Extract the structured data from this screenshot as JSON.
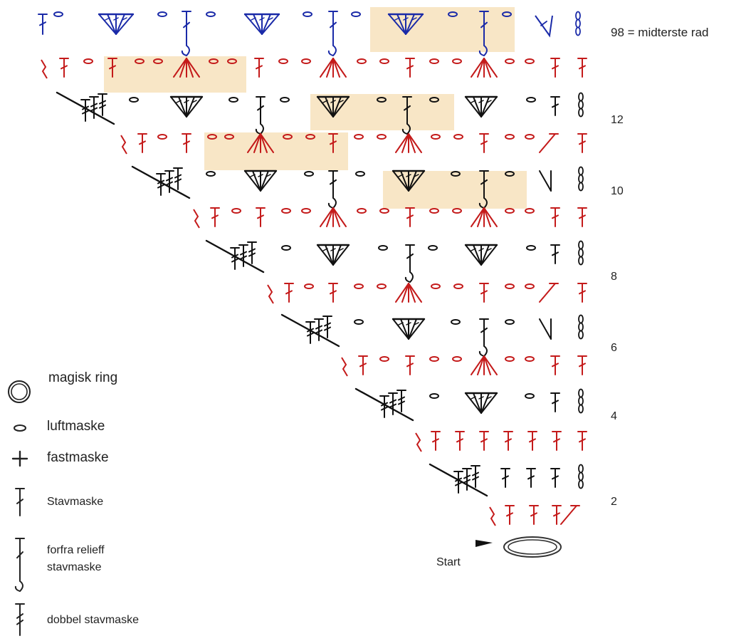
{
  "colors": {
    "blue": "#1a2aa8",
    "red": "#c41a1a",
    "black": "#111111",
    "highlight": "#f8e6c6",
    "chain_gray": "#888888"
  },
  "row_labels": [
    {
      "row": 98,
      "text": "98 = midterste rad"
    },
    {
      "row": 12,
      "text": "12"
    },
    {
      "row": 10,
      "text": "10"
    },
    {
      "row": 8,
      "text": "8"
    },
    {
      "row": 6,
      "text": "6"
    },
    {
      "row": 4,
      "text": "4"
    },
    {
      "row": 2,
      "text": "2"
    }
  ],
  "start_label": "Start",
  "legend": [
    {
      "symbol": "magic-ring",
      "label": "magisk ring"
    },
    {
      "symbol": "chain",
      "label": "luftmaske"
    },
    {
      "symbol": "single-crochet",
      "label": "fastmaske"
    },
    {
      "symbol": "double-crochet",
      "label": "Stavmaske"
    },
    {
      "symbol": "front-post-double-crochet",
      "label": "forfra relieff\nstavmaske"
    },
    {
      "symbol": "treble-crochet",
      "label": "dobbel stavmaske"
    }
  ],
  "legend_label_1": "magisk ring",
  "legend_label_2": "luftmaske",
  "legend_label_3": "fastmaske",
  "legend_label_4": "Stavmaske",
  "legend_label_5a": "forfra relieff",
  "legend_label_5b": "stavmaske",
  "legend_label_6": "dobbel stavmaske"
}
